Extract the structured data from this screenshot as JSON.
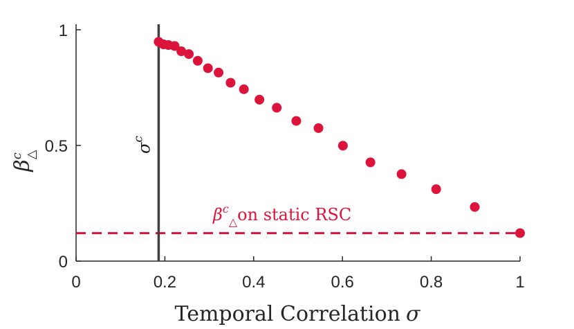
{
  "chart_data": {
    "type": "scatter",
    "xlabel_text": "Temporal Correlation",
    "xlabel_symbol": "σ",
    "ylabel_symbol": "β",
    "ylabel_super": "c",
    "ylabel_sub": "△",
    "xlim": [
      0,
      1
    ],
    "ylim": [
      0,
      1
    ],
    "xticks": [
      0,
      0.2,
      0.4,
      0.6,
      0.8,
      1
    ],
    "xtick_labels": [
      "0",
      "0.2",
      "0.4",
      "0.6",
      "0.8",
      "1"
    ],
    "yticks": [
      0,
      0.5,
      1
    ],
    "ytick_labels": [
      "0",
      "0.5",
      "1"
    ],
    "series": [
      {
        "name": "beta_c",
        "color": "#dc143c",
        "x": [
          0.186,
          0.197,
          0.208,
          0.222,
          0.237,
          0.254,
          0.274,
          0.297,
          0.321,
          0.348,
          0.378,
          0.413,
          0.452,
          0.496,
          0.546,
          0.601,
          0.663,
          0.733,
          0.811,
          0.898,
          1.0
        ],
        "y": [
          0.948,
          0.937,
          0.934,
          0.93,
          0.907,
          0.895,
          0.866,
          0.834,
          0.815,
          0.771,
          0.743,
          0.698,
          0.663,
          0.606,
          0.575,
          0.499,
          0.427,
          0.376,
          0.311,
          0.234,
          0.121
        ]
      }
    ],
    "vline": {
      "x": 0.186,
      "label": "σ",
      "label_super": "c",
      "color": "#404040"
    },
    "hline": {
      "y": 0.121,
      "label_symbol": "β",
      "label_super": "c",
      "label_sub": "△",
      "label_text": "on static RSC",
      "color": "#dc143c"
    }
  }
}
